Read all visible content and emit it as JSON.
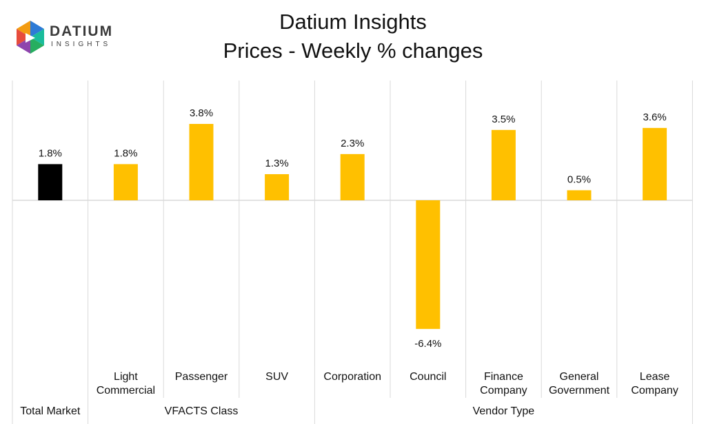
{
  "logo": {
    "main": "DATIUM",
    "sub": "INSIGHTS"
  },
  "chart_data": {
    "type": "bar",
    "title": "Datium Insights",
    "subtitle": "Prices - Weekly % changes",
    "categories": [
      [
        "Total Market"
      ],
      [
        "Light",
        "Commercial"
      ],
      [
        "Passenger"
      ],
      [
        "SUV"
      ],
      [
        "Corporation"
      ],
      [
        "Council"
      ],
      [
        "Finance",
        "Company"
      ],
      [
        "General",
        "Government"
      ],
      [
        "Lease",
        "Company"
      ]
    ],
    "values": [
      1.8,
      1.8,
      3.8,
      1.3,
      2.3,
      -6.4,
      3.5,
      0.5,
      3.6
    ],
    "data_labels": [
      "1.8%",
      "1.8%",
      "3.8%",
      "1.3%",
      "2.3%",
      "-6.4%",
      "3.5%",
      "0.5%",
      "3.6%"
    ],
    "bar_colors": [
      "#000000",
      "#FFC000",
      "#FFC000",
      "#FFC000",
      "#FFC000",
      "#FFC000",
      "#FFC000",
      "#FFC000",
      "#FFC000"
    ],
    "groups": [
      {
        "label": "",
        "members": [
          "Total Market"
        ]
      },
      {
        "label": "VFACTS Class",
        "members": [
          "Light Commercial",
          "Passenger",
          "SUV"
        ]
      },
      {
        "label": "Vendor Type",
        "members": [
          "Corporation",
          "Council",
          "Finance Company",
          "General Government",
          "Lease Company"
        ]
      }
    ],
    "ylim": [
      -7.5,
      6
    ],
    "grid": false
  }
}
